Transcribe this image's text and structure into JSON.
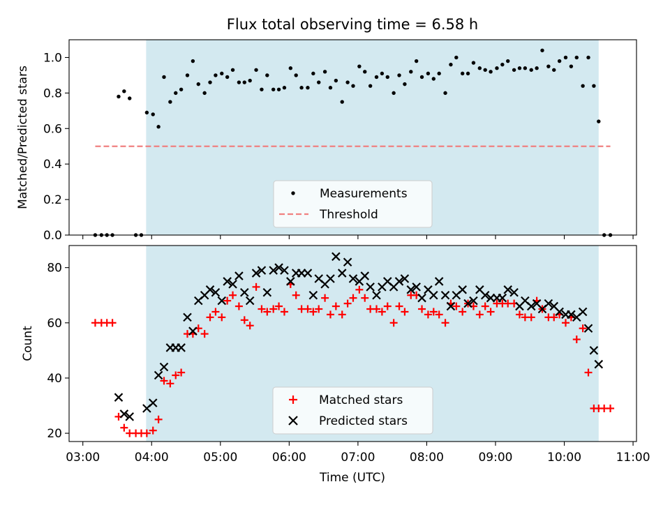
{
  "figure": {
    "title": "Flux total observing time = 6.58 h"
  },
  "colors": {
    "observing_window": "#d3e9f0",
    "measurement": "#000000",
    "threshold": "#f08080",
    "matched": "#ff0000",
    "predicted": "#000000"
  },
  "chart_data": [
    {
      "type": "scatter",
      "panel": "top",
      "title": "Flux total observing time = 6.58 h",
      "xlabel": "",
      "ylabel": "Matched/Predicted stars",
      "xlim_hours": [
        2.8,
        11.05
      ],
      "ylim": [
        0,
        1.1
      ],
      "yticks": [
        "0.0",
        "0.2",
        "0.4",
        "0.6",
        "0.8",
        "1.0"
      ],
      "observing_window_hours": [
        3.92,
        10.5
      ],
      "legend": {
        "placement": "bottom-center",
        "entries": [
          "Measurements",
          "Threshold"
        ]
      },
      "threshold": {
        "name": "Threshold",
        "value": 0.5,
        "x_range_hours": [
          3.18,
          10.67
        ]
      },
      "measurements": {
        "name": "Measurements",
        "x": [
          3.18,
          3.27,
          3.35,
          3.43,
          3.52,
          3.6,
          3.68,
          3.77,
          3.85,
          3.93,
          4.02,
          4.1,
          4.18,
          4.27,
          4.35,
          4.43,
          4.52,
          4.6,
          4.68,
          4.77,
          4.85,
          4.93,
          5.02,
          5.1,
          5.18,
          5.27,
          5.35,
          5.43,
          5.52,
          5.6,
          5.68,
          5.77,
          5.85,
          5.93,
          6.02,
          6.1,
          6.18,
          6.27,
          6.35,
          6.43,
          6.52,
          6.6,
          6.68,
          6.77,
          6.85,
          6.93,
          7.02,
          7.1,
          7.18,
          7.27,
          7.35,
          7.43,
          7.52,
          7.6,
          7.68,
          7.77,
          7.85,
          7.93,
          8.02,
          8.1,
          8.18,
          8.27,
          8.35,
          8.43,
          8.52,
          8.6,
          8.68,
          8.77,
          8.85,
          8.93,
          9.02,
          9.1,
          9.18,
          9.27,
          9.35,
          9.43,
          9.52,
          9.6,
          9.68,
          9.77,
          9.85,
          9.93,
          10.02,
          10.1,
          10.18,
          10.27,
          10.35,
          10.43,
          10.5,
          10.58,
          10.67
        ],
        "y": [
          0,
          0,
          0,
          0,
          0.78,
          0.81,
          0.77,
          0,
          0,
          0.69,
          0.68,
          0.61,
          0.89,
          0.75,
          0.8,
          0.82,
          0.9,
          0.98,
          0.85,
          0.8,
          0.86,
          0.9,
          0.91,
          0.89,
          0.93,
          0.86,
          0.86,
          0.87,
          0.93,
          0.82,
          0.9,
          0.82,
          0.82,
          0.83,
          0.94,
          0.9,
          0.83,
          0.83,
          0.91,
          0.86,
          0.92,
          0.83,
          0.87,
          0.75,
          0.86,
          0.84,
          0.95,
          0.92,
          0.84,
          0.89,
          0.91,
          0.89,
          0.8,
          0.9,
          0.85,
          0.92,
          0.98,
          0.89,
          0.91,
          0.88,
          0.91,
          0.8,
          0.96,
          1.0,
          0.91,
          0.91,
          0.97,
          0.94,
          0.93,
          0.92,
          0.94,
          0.96,
          0.98,
          0.93,
          0.94,
          0.94,
          0.93,
          0.94,
          1.04,
          0.95,
          0.93,
          0.98,
          1.0,
          0.95,
          1.0,
          0.84,
          1.0,
          0.84,
          0.64,
          0,
          0
        ]
      }
    },
    {
      "type": "scatter",
      "panel": "bottom",
      "title": "",
      "xlabel": "Time (UTC)",
      "ylabel": "Count",
      "xlim_hours": [
        2.8,
        11.05
      ],
      "ylim": [
        17,
        88
      ],
      "xticks": [
        "03:00",
        "04:00",
        "05:00",
        "06:00",
        "07:00",
        "08:00",
        "09:00",
        "10:00",
        "11:00"
      ],
      "yticks": [
        "20",
        "40",
        "60",
        "80"
      ],
      "observing_window_hours": [
        3.92,
        10.5
      ],
      "legend": {
        "placement": "bottom-center",
        "entries": [
          "Matched stars",
          "Predicted stars"
        ]
      },
      "series": [
        {
          "name": "Matched stars",
          "marker": "plus",
          "x": [
            3.18,
            3.27,
            3.35,
            3.43,
            3.52,
            3.6,
            3.68,
            3.77,
            3.85,
            3.93,
            4.02,
            4.1,
            4.18,
            4.27,
            4.35,
            4.43,
            4.52,
            4.6,
            4.68,
            4.77,
            4.85,
            4.93,
            5.02,
            5.1,
            5.18,
            5.27,
            5.35,
            5.43,
            5.52,
            5.6,
            5.68,
            5.77,
            5.85,
            5.93,
            6.02,
            6.1,
            6.18,
            6.27,
            6.35,
            6.43,
            6.52,
            6.6,
            6.68,
            6.77,
            6.85,
            6.93,
            7.02,
            7.1,
            7.18,
            7.27,
            7.35,
            7.43,
            7.52,
            7.6,
            7.68,
            7.77,
            7.85,
            7.93,
            8.02,
            8.1,
            8.18,
            8.27,
            8.35,
            8.43,
            8.52,
            8.6,
            8.68,
            8.77,
            8.85,
            8.93,
            9.02,
            9.1,
            9.18,
            9.27,
            9.35,
            9.43,
            9.52,
            9.6,
            9.68,
            9.77,
            9.85,
            9.93,
            10.02,
            10.1,
            10.18,
            10.27,
            10.35,
            10.43,
            10.5,
            10.58,
            10.67
          ],
          "y": [
            60,
            60,
            60,
            60,
            26,
            22,
            20,
            20,
            20,
            20,
            21,
            25,
            39,
            38,
            41,
            42,
            56,
            56,
            58,
            56,
            62,
            64,
            62,
            68,
            70,
            66,
            61,
            59,
            73,
            65,
            64,
            65,
            66,
            64,
            74,
            70,
            65,
            65,
            64,
            65,
            69,
            63,
            66,
            63,
            67,
            69,
            72,
            69,
            65,
            65,
            64,
            66,
            60,
            66,
            64,
            70,
            70,
            65,
            63,
            64,
            63,
            60,
            67,
            66,
            64,
            67,
            66,
            63,
            66,
            64,
            67,
            67,
            67,
            67,
            63,
            62,
            62,
            68,
            65,
            62,
            62,
            63,
            60,
            62,
            54,
            58,
            42,
            29,
            29,
            29,
            29
          ],
          "visible_points": 91
        },
        {
          "name": "Predicted stars",
          "marker": "x",
          "x": [
            3.52,
            3.6,
            3.68,
            3.93,
            4.02,
            4.1,
            4.18,
            4.27,
            4.35,
            4.43,
            4.52,
            4.6,
            4.68,
            4.77,
            4.85,
            4.93,
            5.02,
            5.1,
            5.18,
            5.27,
            5.35,
            5.43,
            5.52,
            5.6,
            5.68,
            5.77,
            5.85,
            5.93,
            6.02,
            6.1,
            6.18,
            6.27,
            6.35,
            6.43,
            6.52,
            6.6,
            6.68,
            6.77,
            6.85,
            6.93,
            7.02,
            7.1,
            7.18,
            7.27,
            7.35,
            7.43,
            7.52,
            7.6,
            7.68,
            7.77,
            7.85,
            7.93,
            8.02,
            8.1,
            8.18,
            8.27,
            8.35,
            8.43,
            8.52,
            8.6,
            8.68,
            8.77,
            8.85,
            8.93,
            9.02,
            9.1,
            9.18,
            9.27,
            9.35,
            9.43,
            9.52,
            9.6,
            9.68,
            9.77,
            9.85,
            9.93,
            10.02,
            10.1,
            10.18,
            10.27,
            10.35,
            10.43,
            10.5
          ],
          "y": [
            33,
            27,
            26,
            29,
            31,
            41,
            44,
            51,
            51,
            51,
            62,
            57,
            68,
            70,
            72,
            71,
            68,
            75,
            74,
            77,
            71,
            68,
            78,
            79,
            71,
            79,
            80,
            79,
            75,
            78,
            78,
            78,
            70,
            76,
            74,
            76,
            84,
            78,
            82,
            76,
            75,
            77,
            73,
            70,
            73,
            75,
            73,
            75,
            76,
            72,
            73,
            69,
            72,
            70,
            75,
            70,
            66,
            70,
            72,
            67,
            68,
            72,
            70,
            69,
            69,
            69,
            72,
            71,
            66,
            68,
            66,
            67,
            65,
            67,
            66,
            64,
            63,
            63,
            62,
            64,
            58,
            50,
            45
          ]
        }
      ]
    }
  ]
}
